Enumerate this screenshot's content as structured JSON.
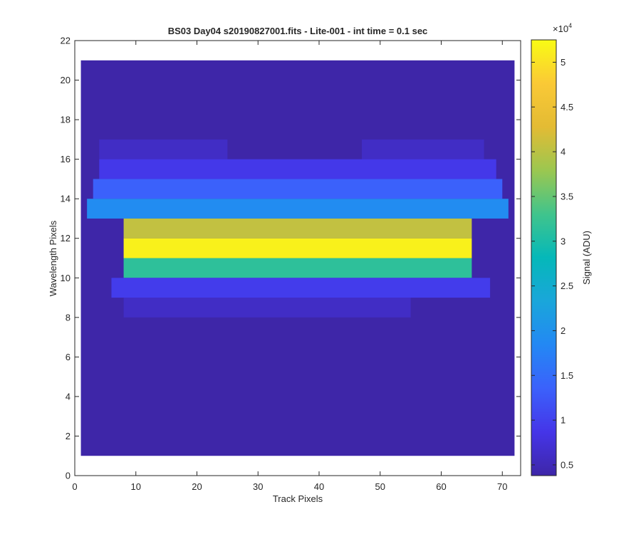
{
  "chart_data": {
    "type": "heatmap",
    "title": "BS03 Day04  s20190827001.fits - Lite-001 - int time = 0.1 sec",
    "xlabel": "Track Pixels",
    "ylabel": "Wavelength Pixels",
    "xlim": [
      0,
      73
    ],
    "ylim": [
      0,
      22
    ],
    "x_ticks": [
      "0",
      "10",
      "20",
      "30",
      "40",
      "50",
      "60",
      "70"
    ],
    "y_ticks": [
      "0",
      "2",
      "4",
      "6",
      "8",
      "10",
      "12",
      "14",
      "16",
      "18",
      "20",
      "22"
    ],
    "colorbar": {
      "label": "Signal (ADU)",
      "exponent_label": "×10",
      "exponent_power": "4",
      "range": [
        3800,
        52500
      ],
      "tick_labels": [
        "0.5",
        "1",
        "1.5",
        "2",
        "2.5",
        "3",
        "3.5",
        "4",
        "4.5",
        "5"
      ],
      "tick_values": [
        5000,
        10000,
        15000,
        20000,
        25000,
        30000,
        35000,
        40000,
        45000,
        50000
      ]
    },
    "data": {
      "x_range": [
        1,
        72
      ],
      "y_range": [
        1,
        21
      ],
      "background_signal": 3800,
      "rows": [
        {
          "y": [
            16,
            17
          ],
          "x": [
            4,
            25
          ],
          "signal": 6000
        },
        {
          "y": [
            16,
            17
          ],
          "x": [
            47,
            67
          ],
          "signal": 6000
        },
        {
          "y": [
            15,
            16
          ],
          "x": [
            4,
            69
          ],
          "signal": 9000
        },
        {
          "y": [
            14,
            15
          ],
          "x": [
            3,
            70
          ],
          "signal": 13500
        },
        {
          "y": [
            13,
            14
          ],
          "x": [
            2,
            71
          ],
          "signal": 19000
        },
        {
          "y": [
            12,
            13
          ],
          "x": [
            8,
            65
          ],
          "signal": 40500
        },
        {
          "y": [
            11,
            12
          ],
          "x": [
            8,
            65
          ],
          "signal": 51500
        },
        {
          "y": [
            10,
            11
          ],
          "x": [
            8,
            65
          ],
          "signal": 31500
        },
        {
          "y": [
            9,
            10
          ],
          "x": [
            6,
            68
          ],
          "signal": 9500
        },
        {
          "y": [
            8,
            9
          ],
          "x": [
            8,
            55
          ],
          "signal": 6000
        }
      ]
    }
  }
}
